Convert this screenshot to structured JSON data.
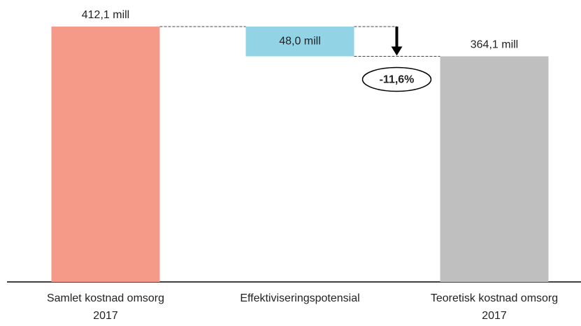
{
  "chart_data": {
    "type": "waterfall",
    "categories": [
      "Samlet kostnad omsorg 2017",
      "Effektiviseringspotensial",
      "Teoretisk kostnad omsorg 2017"
    ],
    "values": [
      412.1,
      48.0,
      364.1
    ],
    "value_labels": [
      "412,1 mill",
      "48,0 mill",
      "364,1 mill"
    ],
    "measure": [
      "absolute",
      "decrease",
      "absolute"
    ],
    "colors": [
      "#f59a89",
      "#92d4e6",
      "#bfbfbf"
    ],
    "annotation": "-11,6%"
  }
}
